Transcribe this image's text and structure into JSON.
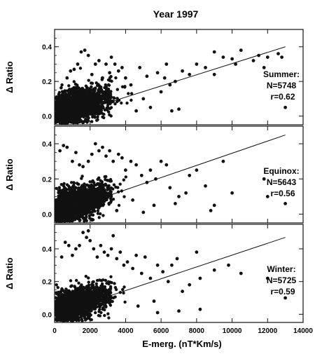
{
  "chart_data": {
    "type": "scatter",
    "title": "Year 1997",
    "xlabel": "E-merg. (nT*Km/s)",
    "xlim": [
      0,
      14000
    ],
    "x_ticks": [
      "0",
      "2000",
      "4000",
      "6000",
      "8000",
      "10000",
      "12000",
      "14000"
    ],
    "x_tick_values": [
      0,
      2000,
      4000,
      6000,
      8000,
      10000,
      12000,
      14000
    ],
    "grid": false,
    "panels": [
      {
        "season": "Summer",
        "label": "Summer:",
        "n_text": "N=5748",
        "r_text": "r=0.62",
        "ylabel": "Δ Ratio",
        "ylim": [
          -0.05,
          0.5
        ],
        "y_ticks": [
          "0.0",
          "0.2",
          "0.4"
        ],
        "y_tick_values": [
          0.0,
          0.2,
          0.4
        ],
        "fit_line": [
          [
            0,
            -0.02
          ],
          [
            13000,
            0.4
          ]
        ],
        "points": [
          [
            9000,
            0.37
          ],
          [
            9500,
            0.34
          ],
          [
            10000,
            0.33
          ],
          [
            10500,
            0.38
          ],
          [
            11200,
            0.32
          ],
          [
            11500,
            0.35
          ],
          [
            12000,
            0.34
          ],
          [
            12600,
            0.36
          ],
          [
            12800,
            0.34
          ],
          [
            13000,
            0.05
          ],
          [
            8500,
            0.28
          ],
          [
            8000,
            0.3
          ],
          [
            7600,
            0.24
          ],
          [
            7200,
            0.26
          ],
          [
            6800,
            0.2
          ],
          [
            6500,
            0.18
          ],
          [
            6200,
            0.22
          ],
          [
            6000,
            0.14
          ],
          [
            5800,
            0.25
          ],
          [
            5400,
            0.05
          ],
          [
            5000,
            0.1
          ],
          [
            4600,
            0.03
          ],
          [
            4300,
            0.18
          ],
          [
            4000,
            0.22
          ],
          [
            3800,
            0.28
          ],
          [
            3600,
            0.26
          ],
          [
            3400,
            0.3
          ],
          [
            3100,
            0.25
          ],
          [
            2900,
            0.3
          ],
          [
            2700,
            0.22
          ],
          [
            2500,
            0.32
          ],
          [
            2300,
            0.3
          ],
          [
            2100,
            0.24
          ],
          [
            1900,
            0.35
          ],
          [
            1700,
            0.38
          ],
          [
            1500,
            0.37
          ],
          [
            1300,
            0.3
          ],
          [
            1100,
            0.27
          ],
          [
            900,
            0.26
          ],
          [
            700,
            0.22
          ],
          [
            10200,
            0.3
          ],
          [
            11800,
            0.28
          ],
          [
            7000,
            0.04
          ],
          [
            6600,
            0.03
          ],
          [
            9000,
            0.24
          ],
          [
            4800,
            0.28
          ],
          [
            5200,
            0.23
          ],
          [
            3200,
            0.34
          ],
          [
            6300,
            0.3
          ]
        ]
      },
      {
        "season": "Equinox",
        "label": "Equinox:",
        "n_text": "N=5643",
        "r_text": "r=0.56",
        "ylabel": "Δ Ratio",
        "ylim": [
          -0.05,
          0.5
        ],
        "y_ticks": [
          "0.0",
          "0.2",
          "0.4"
        ],
        "y_tick_values": [
          0.0,
          0.2,
          0.4
        ],
        "fit_line": [
          [
            0,
            0.0
          ],
          [
            13000,
            0.45
          ]
        ],
        "points": [
          [
            13000,
            0.06
          ],
          [
            12000,
            0.1
          ],
          [
            9000,
            0.05
          ],
          [
            8500,
            0.16
          ],
          [
            8000,
            0.25
          ],
          [
            7600,
            0.22
          ],
          [
            7400,
            0.12
          ],
          [
            7000,
            0.1
          ],
          [
            6800,
            0.06
          ],
          [
            6500,
            0.15
          ],
          [
            6300,
            0.28
          ],
          [
            6000,
            0.3
          ],
          [
            5700,
            0.2
          ],
          [
            5400,
            0.25
          ],
          [
            5200,
            0.18
          ],
          [
            4900,
            0.22
          ],
          [
            4600,
            0.28
          ],
          [
            4300,
            0.3
          ],
          [
            4000,
            0.25
          ],
          [
            3800,
            0.32
          ],
          [
            3600,
            0.34
          ],
          [
            3300,
            0.3
          ],
          [
            3100,
            0.36
          ],
          [
            2900,
            0.33
          ],
          [
            2700,
            0.38
          ],
          [
            2500,
            0.36
          ],
          [
            2300,
            0.4
          ],
          [
            2100,
            0.34
          ],
          [
            1900,
            0.3
          ],
          [
            1600,
            0.27
          ],
          [
            1400,
            0.28
          ],
          [
            1200,
            0.35
          ],
          [
            1000,
            0.3
          ],
          [
            700,
            0.38
          ],
          [
            500,
            0.39
          ],
          [
            300,
            0.36
          ],
          [
            11800,
            0.2
          ],
          [
            10000,
            0.12
          ],
          [
            9500,
            0.3
          ],
          [
            8800,
            0.02
          ],
          [
            5600,
            0.05
          ],
          [
            5000,
            0.01
          ],
          [
            4400,
            0.08
          ],
          [
            3500,
            0.02
          ]
        ]
      },
      {
        "season": "Winter",
        "label": "Winter:",
        "n_text": "N=5725",
        "r_text": "r=0.59",
        "ylabel": "Δ Ratio",
        "ylim": [
          -0.05,
          0.55
        ],
        "y_ticks": [
          "0.0",
          "0.2",
          "0.4"
        ],
        "y_tick_values": [
          0.0,
          0.2,
          0.4
        ],
        "fit_line": [
          [
            0,
            0.0
          ],
          [
            13000,
            0.47
          ]
        ],
        "points": [
          [
            13000,
            0.1
          ],
          [
            12000,
            0.22
          ],
          [
            10500,
            0.25
          ],
          [
            9800,
            0.3
          ],
          [
            9000,
            0.27
          ],
          [
            8200,
            0.22
          ],
          [
            8000,
            0.38
          ],
          [
            7600,
            0.18
          ],
          [
            7200,
            0.14
          ],
          [
            6900,
            0.34
          ],
          [
            6600,
            0.3
          ],
          [
            6400,
            0.2
          ],
          [
            6100,
            0.26
          ],
          [
            5800,
            0.3
          ],
          [
            5600,
            0.08
          ],
          [
            5400,
            0.22
          ],
          [
            5100,
            0.35
          ],
          [
            4900,
            0.25
          ],
          [
            4600,
            0.36
          ],
          [
            4400,
            0.28
          ],
          [
            4100,
            0.32
          ],
          [
            3900,
            0.3
          ],
          [
            3700,
            0.38
          ],
          [
            3500,
            0.34
          ],
          [
            3200,
            0.4
          ],
          [
            3000,
            0.36
          ],
          [
            2800,
            0.38
          ],
          [
            2600,
            0.42
          ],
          [
            2400,
            0.35
          ],
          [
            2200,
            0.4
          ],
          [
            2000,
            0.45
          ],
          [
            1800,
            0.47
          ],
          [
            1600,
            0.5
          ],
          [
            1400,
            0.42
          ],
          [
            1200,
            0.4
          ],
          [
            1000,
            0.36
          ],
          [
            800,
            0.42
          ],
          [
            600,
            0.44
          ],
          [
            400,
            0.35
          ],
          [
            8200,
            0.03
          ],
          [
            7000,
            0.02
          ],
          [
            5800,
            0.01
          ],
          [
            4700,
            0.05
          ],
          [
            3300,
            0.48
          ],
          [
            1900,
            0.51
          ]
        ]
      }
    ]
  }
}
